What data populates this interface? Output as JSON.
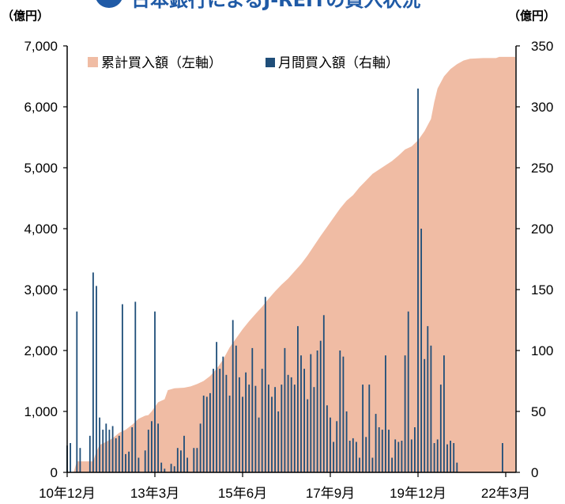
{
  "title": {
    "text": "日本銀行によるJ-REITの買入状況",
    "color": "#1f5aa6",
    "badge_color": "#1f5aa6"
  },
  "chart_data": {
    "type": "area+bar",
    "title": "日本銀行によるJ-REITの買入状況",
    "left_axis": {
      "unit": "（億円）",
      "ylim": [
        0,
        7000
      ],
      "ticks": [
        "0",
        "1,000",
        "2,000",
        "3,000",
        "4,000",
        "5,000",
        "6,000",
        "7,000"
      ]
    },
    "right_axis": {
      "unit": "（億円）",
      "ylim": [
        0,
        350
      ],
      "ticks": [
        "0",
        "50",
        "100",
        "150",
        "200",
        "250",
        "300",
        "350"
      ]
    },
    "x_axis": {
      "start": "2010-12",
      "end": "2022-03",
      "tick_labels": [
        {
          "label": "10年12月",
          "month_index": 0
        },
        {
          "label": "13年3月",
          "month_index": 27
        },
        {
          "label": "15年6月",
          "month_index": 54
        },
        {
          "label": "17年9月",
          "month_index": 81
        },
        {
          "label": "19年12月",
          "month_index": 108
        },
        {
          "label": "22年3月",
          "month_index": 135
        }
      ]
    },
    "legend": {
      "position": "top",
      "items": [
        {
          "label": "累計買入額（左軸）",
          "color": "#f0bca4",
          "marker": "square"
        },
        {
          "label": "月間買入額（右軸）",
          "color": "#1f4e79",
          "marker": "square"
        }
      ]
    },
    "series": [
      {
        "name": "累計買入額（左軸）",
        "axis": "left",
        "kind": "area",
        "color": "#f0bca4",
        "points": [
          [
            0,
            0
          ],
          [
            2,
            0
          ],
          [
            3,
            180
          ],
          [
            8,
            180
          ],
          [
            9,
            340
          ],
          [
            10,
            450
          ],
          [
            12,
            500
          ],
          [
            14,
            560
          ],
          [
            16,
            650
          ],
          [
            18,
            700
          ],
          [
            20,
            780
          ],
          [
            22,
            880
          ],
          [
            24,
            930
          ],
          [
            25,
            940
          ],
          [
            26,
            1000
          ],
          [
            28,
            1150
          ],
          [
            30,
            1200
          ],
          [
            31,
            1350
          ],
          [
            33,
            1380
          ],
          [
            36,
            1390
          ],
          [
            38,
            1410
          ],
          [
            40,
            1450
          ],
          [
            42,
            1500
          ],
          [
            44,
            1580
          ],
          [
            46,
            1700
          ],
          [
            48,
            1850
          ],
          [
            50,
            2050
          ],
          [
            52,
            2200
          ],
          [
            54,
            2350
          ],
          [
            56,
            2480
          ],
          [
            58,
            2600
          ],
          [
            60,
            2720
          ],
          [
            62,
            2850
          ],
          [
            64,
            2970
          ],
          [
            66,
            3080
          ],
          [
            68,
            3180
          ],
          [
            70,
            3300
          ],
          [
            72,
            3420
          ],
          [
            74,
            3560
          ],
          [
            76,
            3720
          ],
          [
            78,
            3880
          ],
          [
            80,
            4030
          ],
          [
            82,
            4180
          ],
          [
            84,
            4330
          ],
          [
            86,
            4460
          ],
          [
            88,
            4550
          ],
          [
            90,
            4680
          ],
          [
            92,
            4790
          ],
          [
            94,
            4900
          ],
          [
            96,
            4970
          ],
          [
            98,
            5040
          ],
          [
            100,
            5110
          ],
          [
            102,
            5200
          ],
          [
            104,
            5300
          ],
          [
            106,
            5350
          ],
          [
            108,
            5450
          ],
          [
            110,
            5600
          ],
          [
            112,
            5800
          ],
          [
            113,
            6080
          ],
          [
            114,
            6300
          ],
          [
            116,
            6500
          ],
          [
            118,
            6620
          ],
          [
            120,
            6700
          ],
          [
            122,
            6760
          ],
          [
            124,
            6790
          ],
          [
            128,
            6800
          ],
          [
            132,
            6800
          ],
          [
            133,
            6820
          ],
          [
            135,
            6820
          ]
        ]
      },
      {
        "name": "月間買入額（右軸）",
        "axis": "right",
        "kind": "bar",
        "color": "#1f4e79",
        "points": [
          [
            0,
            22
          ],
          [
            1,
            24
          ],
          [
            3,
            132
          ],
          [
            4,
            20
          ],
          [
            7,
            30
          ],
          [
            8,
            164
          ],
          [
            9,
            153
          ],
          [
            10,
            45
          ],
          [
            11,
            35
          ],
          [
            12,
            40
          ],
          [
            13,
            35
          ],
          [
            14,
            38
          ],
          [
            15,
            28
          ],
          [
            16,
            30
          ],
          [
            17,
            138
          ],
          [
            18,
            15
          ],
          [
            19,
            17
          ],
          [
            20,
            37
          ],
          [
            21,
            140
          ],
          [
            22,
            12
          ],
          [
            24,
            18
          ],
          [
            25,
            35
          ],
          [
            26,
            42
          ],
          [
            27,
            132
          ],
          [
            28,
            40
          ],
          [
            29,
            8
          ],
          [
            30,
            3
          ],
          [
            32,
            7
          ],
          [
            33,
            5
          ],
          [
            34,
            20
          ],
          [
            35,
            18
          ],
          [
            36,
            30
          ],
          [
            37,
            12
          ],
          [
            39,
            20
          ],
          [
            40,
            20
          ],
          [
            41,
            40
          ],
          [
            42,
            63
          ],
          [
            43,
            62
          ],
          [
            44,
            65
          ],
          [
            45,
            85
          ],
          [
            46,
            107
          ],
          [
            47,
            85
          ],
          [
            48,
            95
          ],
          [
            49,
            80
          ],
          [
            50,
            63
          ],
          [
            51,
            125
          ],
          [
            52,
            104
          ],
          [
            53,
            78
          ],
          [
            54,
            62
          ],
          [
            55,
            82
          ],
          [
            56,
            72
          ],
          [
            57,
            102
          ],
          [
            58,
            71
          ],
          [
            59,
            45
          ],
          [
            60,
            85
          ],
          [
            61,
            144
          ],
          [
            62,
            72
          ],
          [
            63,
            62
          ],
          [
            64,
            70
          ],
          [
            65,
            50
          ],
          [
            66,
            72
          ],
          [
            67,
            102
          ],
          [
            68,
            80
          ],
          [
            69,
            78
          ],
          [
            70,
            72
          ],
          [
            71,
            120
          ],
          [
            72,
            96
          ],
          [
            73,
            85
          ],
          [
            74,
            60
          ],
          [
            75,
            97
          ],
          [
            76,
            70
          ],
          [
            77,
            100
          ],
          [
            78,
            108
          ],
          [
            79,
            129
          ],
          [
            80,
            55
          ],
          [
            81,
            45
          ],
          [
            82,
            25
          ],
          [
            83,
            42
          ],
          [
            84,
            100
          ],
          [
            85,
            95
          ],
          [
            86,
            50
          ],
          [
            87,
            26
          ],
          [
            88,
            28
          ],
          [
            89,
            25
          ],
          [
            90,
            12
          ],
          [
            91,
            72
          ],
          [
            92,
            29
          ],
          [
            93,
            72
          ],
          [
            94,
            12
          ],
          [
            95,
            48
          ],
          [
            96,
            37
          ],
          [
            97,
            35
          ],
          [
            98,
            96
          ],
          [
            99,
            35
          ],
          [
            100,
            12
          ],
          [
            101,
            27
          ],
          [
            102,
            25
          ],
          [
            103,
            26
          ],
          [
            104,
            96
          ],
          [
            105,
            132
          ],
          [
            106,
            27
          ],
          [
            107,
            37
          ],
          [
            108,
            315
          ],
          [
            109,
            200
          ],
          [
            110,
            93
          ],
          [
            111,
            120
          ],
          [
            112,
            104
          ],
          [
            113,
            24
          ],
          [
            114,
            27
          ],
          [
            115,
            72
          ],
          [
            116,
            96
          ],
          [
            117,
            23
          ],
          [
            118,
            26
          ],
          [
            119,
            24
          ],
          [
            120,
            8
          ],
          [
            134,
            24
          ]
        ]
      }
    ],
    "grid": false
  }
}
